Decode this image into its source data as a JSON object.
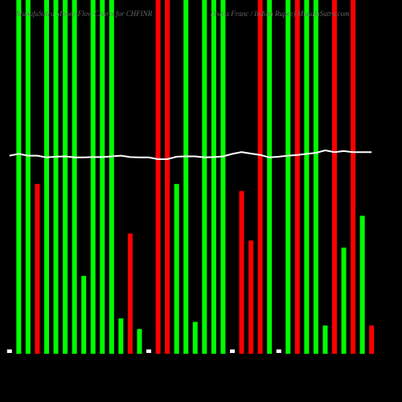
{
  "chart_data": {
    "type": "bar",
    "title": "MunafaSutra Money Flow Charts for CHFINR",
    "subtitle": "(Swiss Franc / Indian Rupee) MunafaSutra.com",
    "ylim": [
      0,
      100
    ],
    "values": [
      1,
      100,
      100,
      48,
      100,
      100,
      100,
      100,
      22,
      100,
      100,
      100,
      10,
      34,
      7,
      1,
      100,
      100,
      48,
      100,
      9,
      100,
      100,
      100,
      1,
      46,
      32,
      100,
      100,
      1,
      100,
      100,
      100,
      100,
      8,
      100,
      30,
      100,
      39,
      8
    ],
    "colors": [
      "#ffffff",
      "#00ff00",
      "#00ff00",
      "#ff0000",
      "#00ff00",
      "#00ff00",
      "#00ff00",
      "#00ff00",
      "#00ff00",
      "#00ff00",
      "#00ff00",
      "#00ff00",
      "#00ff00",
      "#ff0000",
      "#00ff00",
      "#ffffff",
      "#ff0000",
      "#ff0000",
      "#00ff00",
      "#00ff00",
      "#00ff00",
      "#00ff00",
      "#00ff00",
      "#00ff00",
      "#ffffff",
      "#ff0000",
      "#ff0000",
      "#ff0000",
      "#00ff00",
      "#ffffff",
      "#00ff00",
      "#ff0000",
      "#00ff00",
      "#00ff00",
      "#00ff00",
      "#ff0000",
      "#00ff00",
      "#ff0000",
      "#00ff00",
      "#ff0000"
    ],
    "line": {
      "color": "#ffffff",
      "values": [
        56,
        56.5,
        56,
        56,
        55.5,
        55.7,
        55.8,
        55.5,
        55.5,
        55.6,
        55.6,
        55.8,
        56,
        55.6,
        55.5,
        55.5,
        55,
        55,
        55.7,
        55.8,
        55.8,
        55.5,
        55.6,
        55.8,
        56.5,
        57,
        56.6,
        56.2,
        55.5,
        55.7,
        56,
        56.2,
        56.5,
        56.8,
        57.5,
        57,
        57.3,
        57,
        57,
        57
      ]
    }
  }
}
